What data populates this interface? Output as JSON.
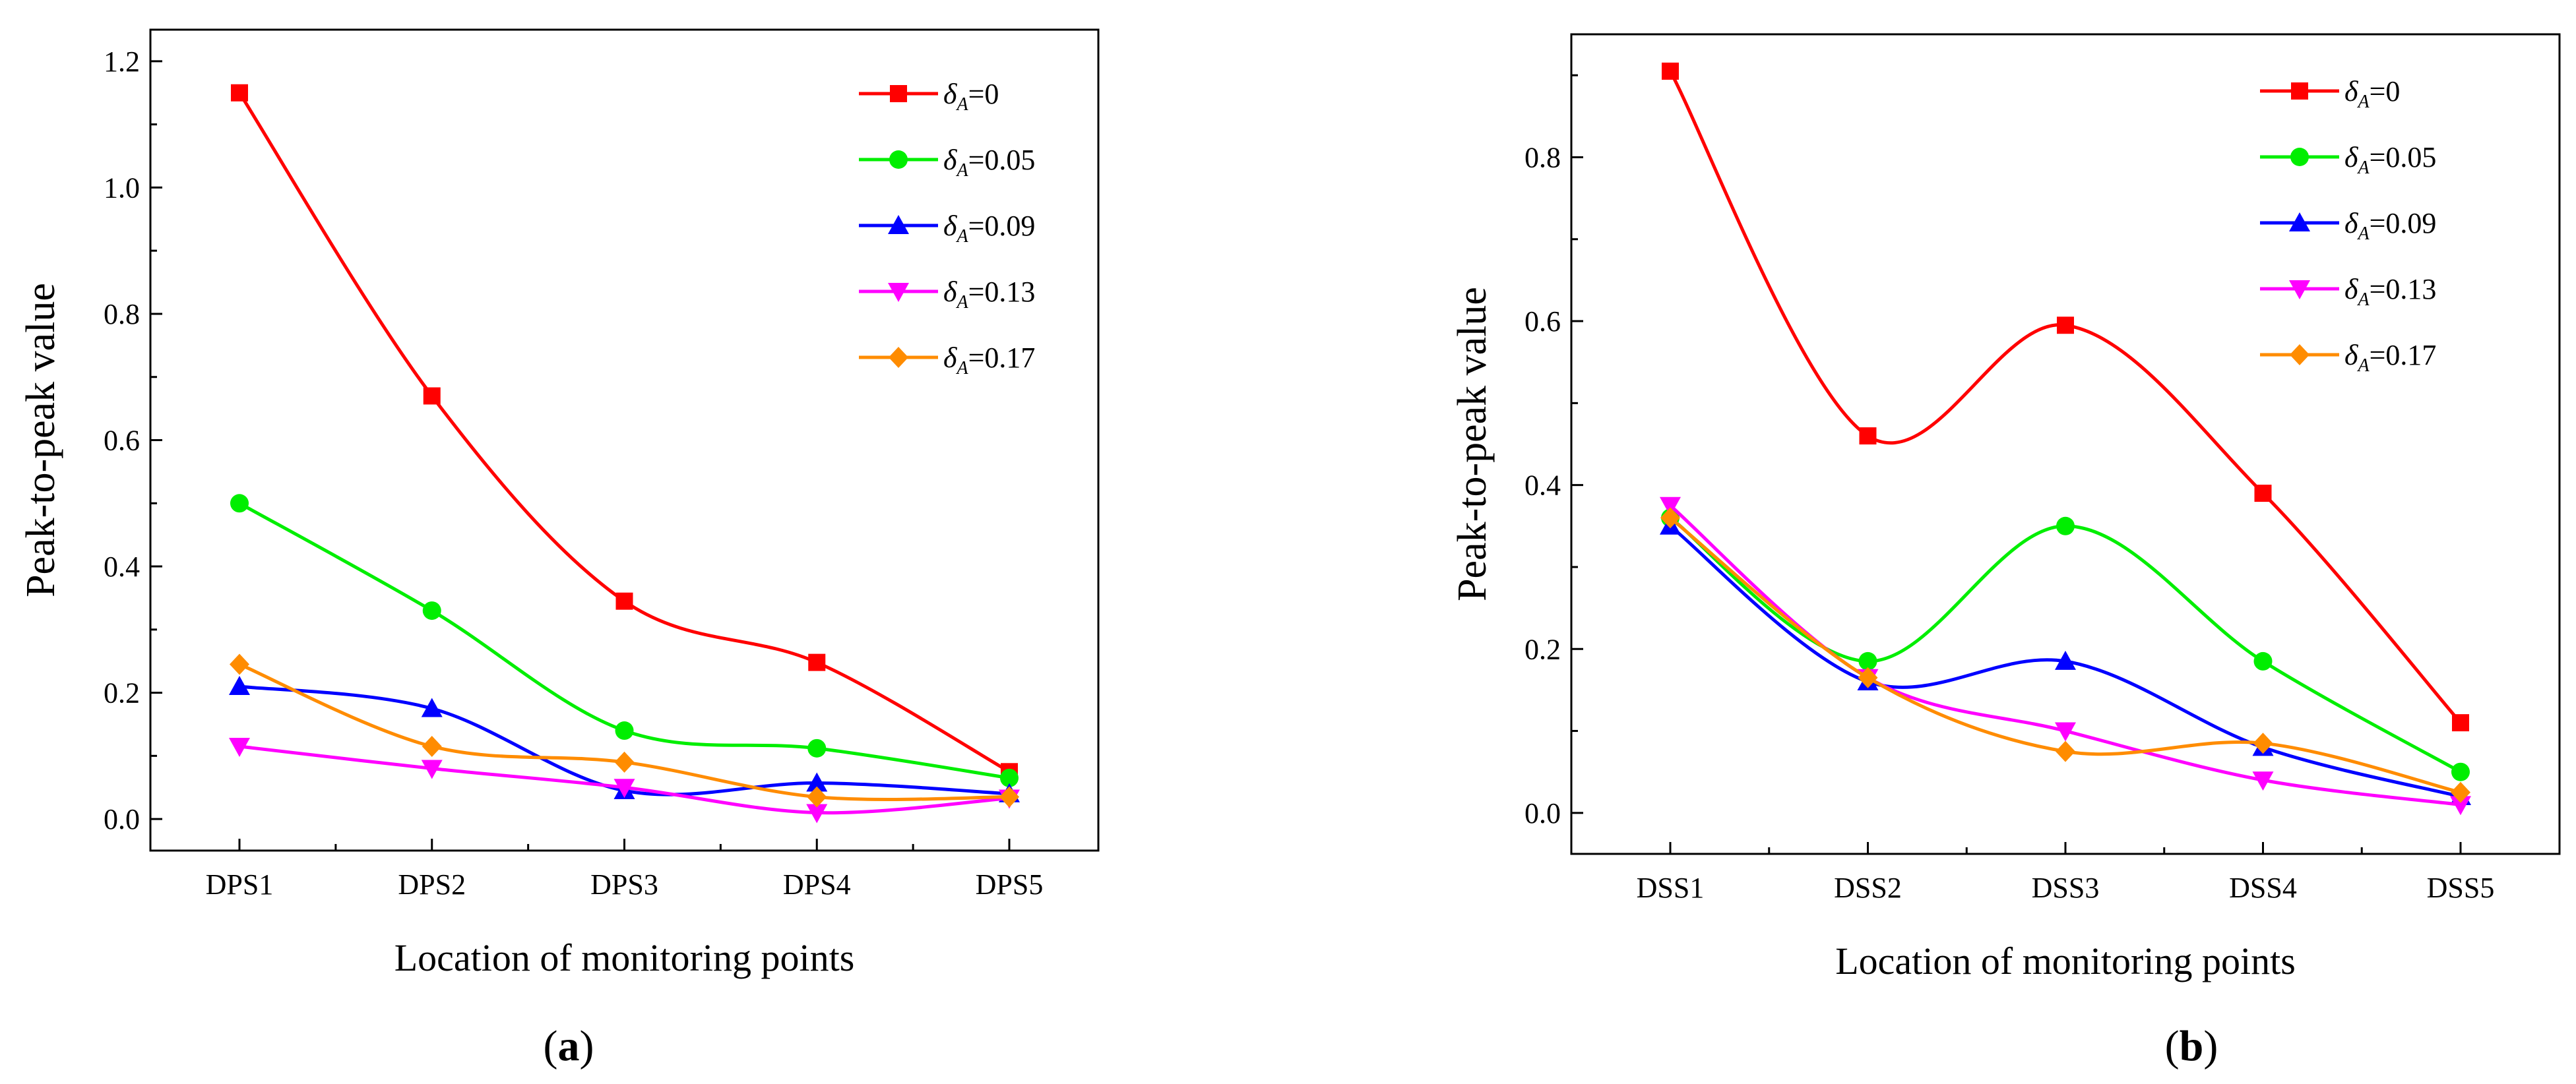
{
  "figure": {
    "panel_labels": [
      "(a)",
      "(b)"
    ]
  },
  "chart_data": [
    {
      "type": "line",
      "panel": "(a)",
      "title": "",
      "xlabel": "Location of monitoring points",
      "ylabel": "Peak-to-peak value",
      "categories": [
        "DPS1",
        "DPS2",
        "DPS3",
        "DPS4",
        "DPS5"
      ],
      "ylim": [
        -0.05,
        1.25
      ],
      "yticks": [
        0.0,
        0.2,
        0.4,
        0.6,
        0.8,
        1.0,
        1.2
      ],
      "ytick_labels": [
        "0.0",
        "0.2",
        "0.4",
        "0.6",
        "0.8",
        "1.0",
        "1.2"
      ],
      "grid": false,
      "legend_position": "top-right",
      "series": [
        {
          "name": "δA=0",
          "legend_prefix": "δ",
          "legend_sub": "A",
          "legend_value": "=0",
          "marker": "square",
          "color": "#ff0000",
          "values": [
            1.15,
            0.67,
            0.345,
            0.248,
            0.075
          ]
        },
        {
          "name": "δA=0.05",
          "legend_prefix": "δ",
          "legend_sub": "A",
          "legend_value": "=0.05",
          "marker": "circle",
          "color": "#00ee00",
          "values": [
            0.5,
            0.33,
            0.14,
            0.112,
            0.065
          ]
        },
        {
          "name": "δA=0.09",
          "legend_prefix": "δ",
          "legend_sub": "A",
          "legend_value": "=0.09",
          "marker": "triangle-up",
          "color": "#0000ff",
          "values": [
            0.21,
            0.175,
            0.045,
            0.057,
            0.04
          ]
        },
        {
          "name": "δA=0.13",
          "legend_prefix": "δ",
          "legend_sub": "A",
          "legend_value": "=0.13",
          "marker": "triangle-down",
          "color": "#ff00ff",
          "values": [
            0.115,
            0.08,
            0.05,
            0.01,
            0.033
          ]
        },
        {
          "name": "δA=0.17",
          "legend_prefix": "δ",
          "legend_sub": "A",
          "legend_value": "=0.17",
          "marker": "diamond",
          "color": "#ff8c00",
          "values": [
            0.245,
            0.115,
            0.09,
            0.035,
            0.035
          ]
        }
      ]
    },
    {
      "type": "line",
      "panel": "(b)",
      "title": "",
      "xlabel": "Location of monitoring points",
      "ylabel": "Peak-to-peak value",
      "categories": [
        "DSS1",
        "DSS2",
        "DSS3",
        "DSS4",
        "DSS5"
      ],
      "ylim": [
        -0.05,
        0.95
      ],
      "yticks": [
        0.0,
        0.2,
        0.4,
        0.6,
        0.8
      ],
      "ytick_labels": [
        "0.0",
        "0.2",
        "0.4",
        "0.6",
        "0.8"
      ],
      "grid": false,
      "legend_position": "top-right",
      "series": [
        {
          "name": "δA=0",
          "legend_prefix": "δ",
          "legend_sub": "A",
          "legend_value": "=0",
          "marker": "square",
          "color": "#ff0000",
          "values": [
            0.905,
            0.46,
            0.595,
            0.39,
            0.11
          ]
        },
        {
          "name": "δA=0.05",
          "legend_prefix": "δ",
          "legend_sub": "A",
          "legend_value": "=0.05",
          "marker": "circle",
          "color": "#00ee00",
          "values": [
            0.36,
            0.185,
            0.35,
            0.185,
            0.05
          ]
        },
        {
          "name": "δA=0.09",
          "legend_prefix": "δ",
          "legend_sub": "A",
          "legend_value": "=0.09",
          "marker": "triangle-up",
          "color": "#0000ff",
          "values": [
            0.35,
            0.16,
            0.185,
            0.08,
            0.02
          ]
        },
        {
          "name": "δA=0.13",
          "legend_prefix": "δ",
          "legend_sub": "A",
          "legend_value": "=0.13",
          "marker": "triangle-down",
          "color": "#ff00ff",
          "values": [
            0.375,
            0.165,
            0.1,
            0.04,
            0.01
          ]
        },
        {
          "name": "δA=0.17",
          "legend_prefix": "δ",
          "legend_sub": "A",
          "legend_value": "=0.17",
          "marker": "diamond",
          "color": "#ff8c00",
          "values": [
            0.36,
            0.165,
            0.075,
            0.085,
            0.025
          ]
        }
      ]
    }
  ]
}
